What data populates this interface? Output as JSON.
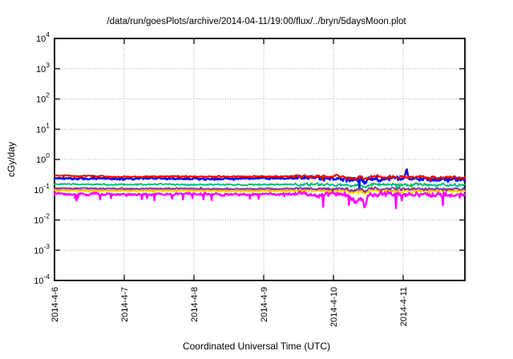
{
  "chart_data": {
    "type": "line",
    "title": "/data/run/goesPlots/archive/2014-04-11/19:00/flux/../bryn/5daysMoon.plot",
    "xlabel": "Coordinated Universal Time (UTC)",
    "ylabel": "cGy/day",
    "background_color": "#ffffff",
    "border_color": "#1a1a1a",
    "grid": {
      "show": true,
      "style": "dotted",
      "color": "#b2b2b2"
    },
    "x_axis": {
      "scale": "time",
      "tick_labels": [
        "2014-4-6",
        "2014-4-7",
        "2014-4-8",
        "2014-4-9",
        "2014-4-10",
        "2014-4-11"
      ],
      "tick_interval_days": 1,
      "range_days": [
        0,
        5.885
      ],
      "labels_rotation_deg": -90
    },
    "y_axis": {
      "scale": "log10",
      "min_exp": -4,
      "max_exp": 4,
      "tick_base": "10",
      "tick_exponents": [
        "4",
        "3",
        "2",
        "1",
        "0",
        "-1",
        "-2",
        "-3",
        "-4"
      ]
    },
    "noise_increase_after_day": 3.45,
    "noise_increase_factor": 2.1,
    "series": [
      {
        "name": "orange-line",
        "color": "#ff8800",
        "stroke_width": 1.5,
        "noise": 0.015,
        "spike_prob": 0.012,
        "spike_bias": 0,
        "levels": [
          0.1,
          0.098,
          0.099,
          0.097,
          0.098,
          0.098,
          0.096,
          0.095
        ]
      },
      {
        "name": "yellow-line",
        "color": "#ecdc00",
        "stroke_width": 1.6,
        "noise": 0.018,
        "spike_prob": 0.015,
        "spike_bias": 0,
        "levels": [
          0.092,
          0.09,
          0.091,
          0.089,
          0.09,
          0.09,
          0.088,
          0.087
        ]
      },
      {
        "name": "purple-line",
        "color": "#8b3090",
        "stroke_width": 1.8,
        "noise": 0.018,
        "spike_prob": 0.015,
        "spike_bias": 0,
        "levels": [
          0.113,
          0.108,
          0.11,
          0.107,
          0.109,
          0.108,
          0.106,
          0.104
        ]
      },
      {
        "name": "magenta-line",
        "color": "#ff00ff",
        "stroke_width": 2.3,
        "noise": 0.035,
        "spike_prob": 0.055,
        "spike_bias": -1,
        "levels": [
          0.073,
          0.07,
          0.072,
          0.07,
          0.071,
          0.07,
          0.069,
          0.068
        ]
      },
      {
        "name": "green-line",
        "color": "#00b87a",
        "stroke_width": 1.8,
        "noise": 0.02,
        "spike_prob": 0.015,
        "spike_bias": 0,
        "levels": [
          0.155,
          0.148,
          0.15,
          0.147,
          0.15,
          0.148,
          0.145,
          0.142
        ]
      },
      {
        "name": "blue-line",
        "color": "#0014e8",
        "stroke_width": 2.5,
        "noise": 0.03,
        "spike_prob": 0.03,
        "spike_bias": -0.5,
        "levels": [
          0.24,
          0.23,
          0.235,
          0.23,
          0.245,
          0.235,
          0.23,
          0.22
        ]
      },
      {
        "name": "red-line",
        "color": "#f00000",
        "stroke_width": 2.0,
        "noise": 0.022,
        "spike_prob": 0.015,
        "spike_bias": 0,
        "levels": [
          0.3,
          0.27,
          0.275,
          0.27,
          0.28,
          0.27,
          0.26,
          0.25
        ]
      }
    ],
    "events": [
      {
        "series": "all",
        "t_days": 4.28,
        "factor": 0.88,
        "width_days": 0.05
      },
      {
        "series": "magenta-line",
        "t_days": 4.33,
        "factor": 0.62,
        "width_days": 0.045
      },
      {
        "series": "all",
        "t_days": 4.45,
        "factor": 0.8,
        "width_days": 0.03
      },
      {
        "series": "magenta-line",
        "t_days": 4.45,
        "value": 0.038,
        "width_days": 0.022
      },
      {
        "series": "blue-line",
        "t_days": 5.05,
        "value": 0.46,
        "width_days": 0.016
      }
    ]
  }
}
